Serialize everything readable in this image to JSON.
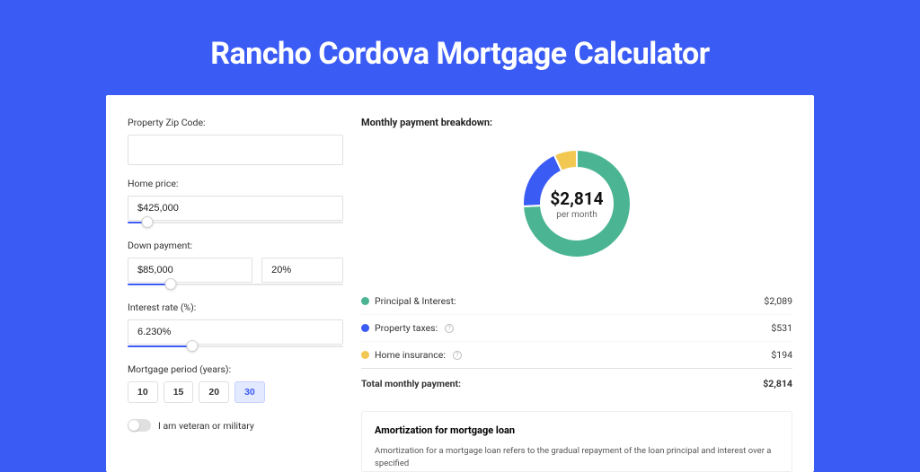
{
  "title": "Rancho Cordova Mortgage Calculator",
  "colors": {
    "page_bg": "#3b5bf5",
    "card_bg": "#ffffff",
    "accent": "#3b5bf5",
    "principal": "#4bb593",
    "taxes": "#3b5bf5",
    "insurance": "#f2c853"
  },
  "form": {
    "zip_label": "Property Zip Code:",
    "zip_value": "",
    "home_price_label": "Home price:",
    "home_price_value": "$425,000",
    "home_price_slider_pct": 9,
    "down_payment_label": "Down payment:",
    "down_payment_value": "$85,000",
    "down_payment_pct": "20%",
    "down_payment_slider_pct": 20,
    "interest_label": "Interest rate (%):",
    "interest_value": "6.230%",
    "interest_slider_pct": 30,
    "period_label": "Mortgage period (years):",
    "periods": [
      "10",
      "15",
      "20",
      "30"
    ],
    "period_active": "30",
    "veteran_label": "I am veteran or military",
    "veteran_on": false
  },
  "breakdown": {
    "title": "Monthly payment breakdown:",
    "donut": {
      "amount": "$2,814",
      "sub": "per month",
      "segments": [
        {
          "label": "Principal & Interest",
          "color": "#4bb593",
          "pct": 74.2
        },
        {
          "label": "Property taxes",
          "color": "#3b5bf5",
          "pct": 18.9
        },
        {
          "label": "Home insurance",
          "color": "#f2c853",
          "pct": 6.9
        }
      ]
    },
    "rows": [
      {
        "dot": "#4bb593",
        "label": "Principal & Interest:",
        "info": false,
        "value": "$2,089"
      },
      {
        "dot": "#3b5bf5",
        "label": "Property taxes:",
        "info": true,
        "value": "$531"
      },
      {
        "dot": "#f2c853",
        "label": "Home insurance:",
        "info": true,
        "value": "$194"
      }
    ],
    "total_label": "Total monthly payment:",
    "total_value": "$2,814"
  },
  "amortization": {
    "title": "Amortization for mortgage loan",
    "text": "Amortization for a mortgage loan refers to the gradual repayment of the loan principal and interest over a specified"
  }
}
